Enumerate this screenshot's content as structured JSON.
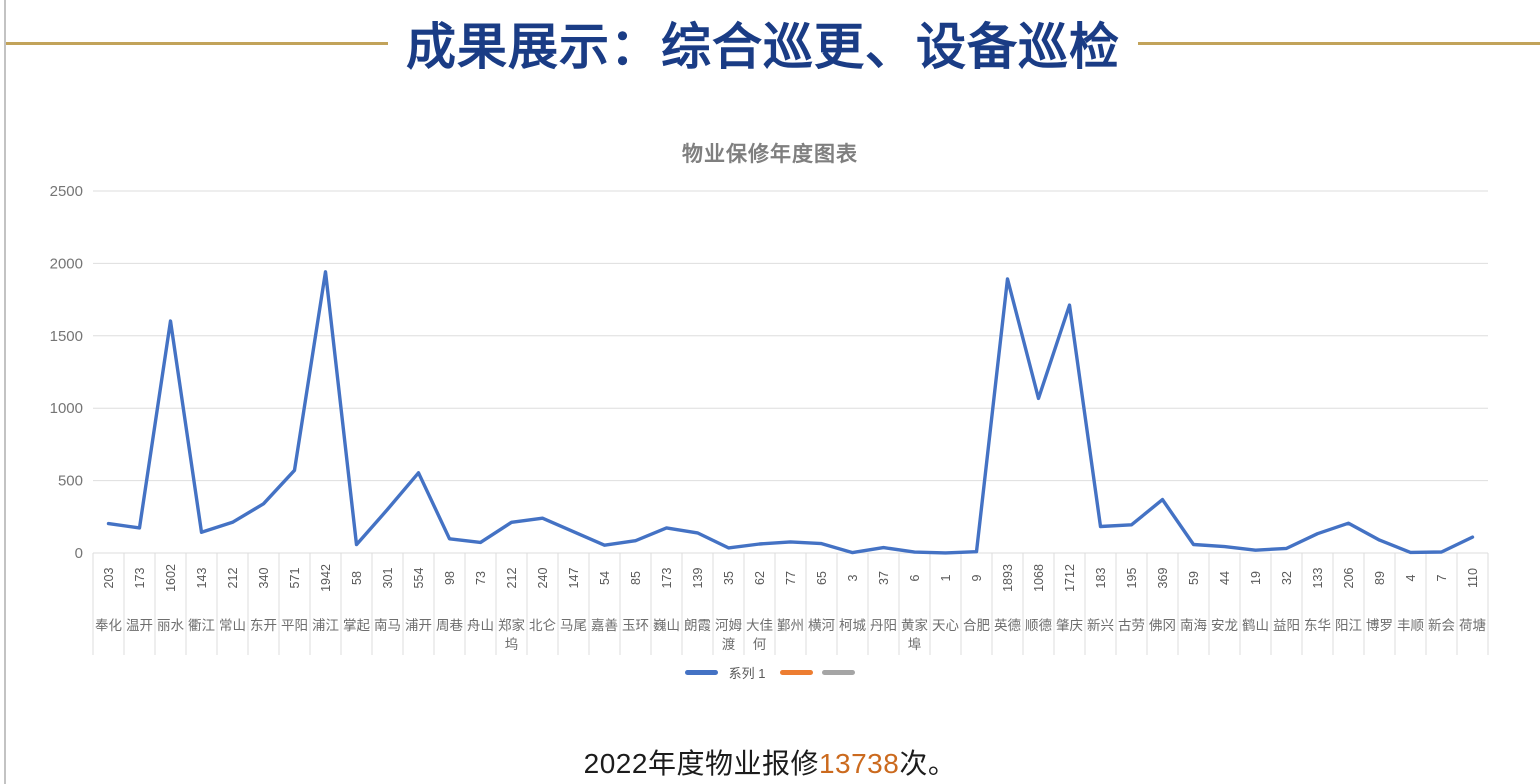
{
  "header": {
    "title": "成果展示：综合巡更、设备巡检",
    "title_color": "#1a3c85",
    "divider_color": "#c2a35a"
  },
  "chart_data": {
    "type": "line",
    "title": "物业保修年度图表",
    "categories": [
      "奉化",
      "温开",
      "丽水",
      "衢江",
      "常山",
      "东开",
      "平阳",
      "浦江",
      "掌起",
      "南马",
      "浦开",
      "周巷",
      "舟山",
      "郑家坞",
      "北仑",
      "马尾",
      "嘉善",
      "玉环",
      "巍山",
      "朗霞",
      "河姆渡",
      "大佳何",
      "鄞州",
      "横河",
      "柯城",
      "丹阳",
      "黄家埠",
      "天心",
      "合肥",
      "英德",
      "顺德",
      "肇庆",
      "新兴",
      "古劳",
      "佛冈",
      "南海",
      "安龙",
      "鹤山",
      "益阳",
      "东华",
      "阳江",
      "博罗",
      "丰顺",
      "新会",
      "荷塘"
    ],
    "series": [
      {
        "name": "系列 1",
        "color": "#4472C4",
        "values": [
          203,
          173,
          1602,
          143,
          212,
          340,
          571,
          1942,
          58,
          301,
          554,
          98,
          73,
          212,
          240,
          147,
          54,
          85,
          173,
          139,
          35,
          62,
          77,
          65,
          3,
          37,
          6,
          1,
          9,
          1893,
          1068,
          1712,
          183,
          195,
          369,
          59,
          44,
          19,
          32,
          133,
          206,
          89,
          4,
          7,
          110
        ]
      },
      {
        "name": "",
        "color": "#ED7D31",
        "values": []
      },
      {
        "name": "",
        "color": "#A5A5A5",
        "values": []
      }
    ],
    "ylim": [
      0,
      2500
    ],
    "y_ticks": [
      0,
      500,
      1000,
      1500,
      2000,
      2500
    ],
    "grid": true,
    "legend_position": "bottom",
    "value_table_shown": true
  },
  "caption": {
    "prefix": "2022年度物业报修",
    "highlight": "13738",
    "suffix": "次。",
    "highlight_color": "#cb6a1e"
  }
}
